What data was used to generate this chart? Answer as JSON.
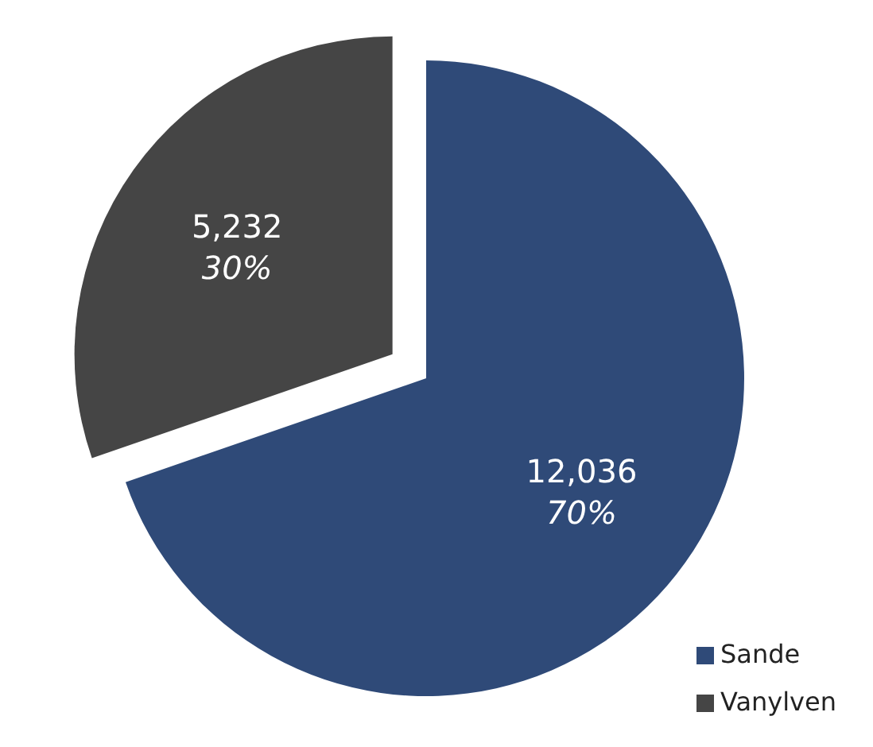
{
  "chart_data": {
    "type": "pie",
    "categories": [
      "Sande",
      "Vanylven"
    ],
    "values": [
      12036,
      5232
    ],
    "colors": [
      "#2f4a78",
      "#454545"
    ],
    "value_labels": [
      "12,036 70%",
      "5,232 30%"
    ],
    "legend": "bottom right"
  }
}
